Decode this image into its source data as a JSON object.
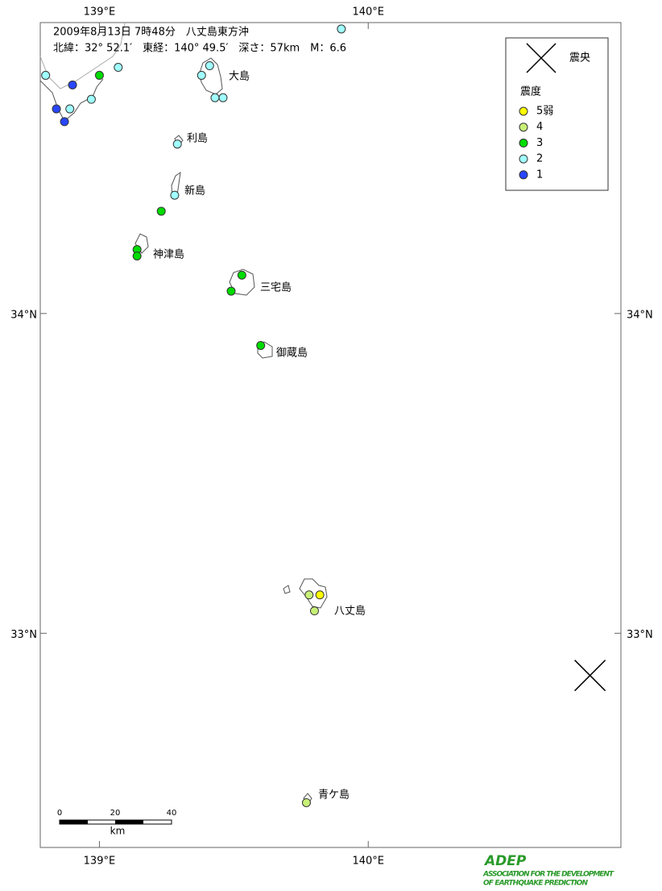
{
  "map": {
    "title": "2009年8月13日 7時48分　八丈島東方沖",
    "subtitle": "北緯：32° 52.1′　東経：140° 49.5′　深さ：57km　M：6.6",
    "xlim": [
      138.78,
      140.94
    ],
    "ylim": [
      32.33,
      34.91
    ],
    "xticks": [
      {
        "value": 139,
        "label": "139°E"
      },
      {
        "value": 140,
        "label": "140°E"
      }
    ],
    "yticks": [
      {
        "value": 34,
        "label": "34°N"
      },
      {
        "value": 33,
        "label": "33°N"
      }
    ],
    "legend": {
      "epicenter": "震央",
      "intensity_title": "震度",
      "items": [
        {
          "label": "5弱",
          "color": "#ffff00"
        },
        {
          "label": "4",
          "color": "#c8f078"
        },
        {
          "label": "3",
          "color": "#00dc00"
        },
        {
          "label": "2",
          "color": "#a0ffff"
        },
        {
          "label": "1",
          "color": "#2846ff"
        }
      ]
    },
    "epicenter": {
      "lon": 140.825,
      "lat": 32.868
    },
    "stations": [
      {
        "lon": 138.8,
        "lat": 34.745,
        "level": 3
      },
      {
        "lon": 138.9,
        "lat": 34.715,
        "level": 4
      },
      {
        "lon": 139.0,
        "lat": 34.745,
        "level": 2
      },
      {
        "lon": 139.07,
        "lat": 34.77,
        "level": 3
      },
      {
        "lon": 138.84,
        "lat": 34.64,
        "level": 4
      },
      {
        "lon": 138.89,
        "lat": 34.64,
        "level": 3
      },
      {
        "lon": 138.97,
        "lat": 34.67,
        "level": 3
      },
      {
        "lon": 138.87,
        "lat": 34.6,
        "level": 4
      },
      {
        "lon": 139.41,
        "lat": 34.775,
        "level": 3
      },
      {
        "lon": 139.38,
        "lat": 34.745,
        "level": 3
      },
      {
        "lon": 139.43,
        "lat": 34.675,
        "level": 3
      },
      {
        "lon": 139.46,
        "lat": 34.675,
        "level": 3
      },
      {
        "lon": 139.9,
        "lat": 34.89,
        "level": 3
      },
      {
        "lon": 139.29,
        "lat": 34.53,
        "level": 3
      },
      {
        "lon": 139.28,
        "lat": 34.37,
        "level": 3
      },
      {
        "lon": 139.23,
        "lat": 34.32,
        "level": 2
      },
      {
        "lon": 139.14,
        "lat": 34.2,
        "level": 2
      },
      {
        "lon": 139.14,
        "lat": 34.18,
        "level": 2
      },
      {
        "lon": 139.53,
        "lat": 34.12,
        "level": 2
      },
      {
        "lon": 139.49,
        "lat": 34.07,
        "level": 2
      },
      {
        "lon": 139.6,
        "lat": 33.9,
        "level": 2
      },
      {
        "lon": 139.78,
        "lat": 33.12,
        "level": 1
      },
      {
        "lon": 139.82,
        "lat": 33.12,
        "level": 0
      },
      {
        "lon": 139.8,
        "lat": 33.07,
        "level": 1
      },
      {
        "lon": 139.77,
        "lat": 32.47,
        "level": 1
      }
    ],
    "islands": [
      "大島",
      "利島",
      "新島",
      "神津島",
      "三宅島",
      "御蔵島",
      "八丈島",
      "青ケ島"
    ],
    "scale": {
      "ticks": [
        "0",
        "20",
        "40"
      ],
      "unit": "km"
    },
    "logo": {
      "name": "ADEP",
      "line1": "ASSOCIATION FOR THE DEVELOPMENT",
      "line2": "OF EARTHQUAKE PREDICTION"
    }
  }
}
